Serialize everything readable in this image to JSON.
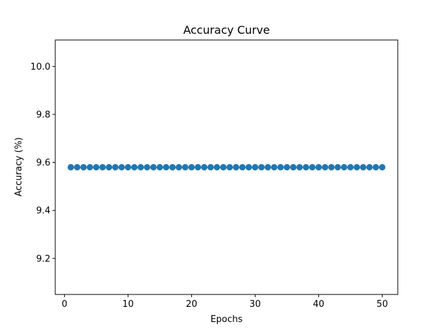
{
  "chart_data": {
    "type": "line",
    "title": "Accuracy Curve",
    "xlabel": "Epochs",
    "ylabel": "Accuracy (%)",
    "xlim": [
      -1.45,
      52.45
    ],
    "ylim": [
      9.05,
      10.11
    ],
    "xticks": [
      0,
      10,
      20,
      30,
      40,
      50
    ],
    "yticks": [
      9.2,
      9.4,
      9.6,
      9.8,
      10.0
    ],
    "xtick_labels": [
      "0",
      "10",
      "20",
      "30",
      "40",
      "50"
    ],
    "ytick_labels": [
      "9.2",
      "9.4",
      "9.6",
      "9.8",
      "10.0"
    ],
    "grid": false,
    "series": [
      {
        "color": "#1f77b4",
        "marker": "circle",
        "x": [
          1,
          2,
          3,
          4,
          5,
          6,
          7,
          8,
          9,
          10,
          11,
          12,
          13,
          14,
          15,
          16,
          17,
          18,
          19,
          20,
          21,
          22,
          23,
          24,
          25,
          26,
          27,
          28,
          29,
          30,
          31,
          32,
          33,
          34,
          35,
          36,
          37,
          38,
          39,
          40,
          41,
          42,
          43,
          44,
          45,
          46,
          47,
          48,
          49,
          50
        ],
        "values": [
          9.58,
          9.58,
          9.58,
          9.58,
          9.58,
          9.58,
          9.58,
          9.58,
          9.58,
          9.58,
          9.58,
          9.58,
          9.58,
          9.58,
          9.58,
          9.58,
          9.58,
          9.58,
          9.58,
          9.58,
          9.58,
          9.58,
          9.58,
          9.58,
          9.58,
          9.58,
          9.58,
          9.58,
          9.58,
          9.58,
          9.58,
          9.58,
          9.58,
          9.58,
          9.58,
          9.58,
          9.58,
          9.58,
          9.58,
          9.58,
          9.58,
          9.58,
          9.58,
          9.58,
          9.58,
          9.58,
          9.58,
          9.58,
          9.58,
          9.58
        ]
      }
    ]
  }
}
